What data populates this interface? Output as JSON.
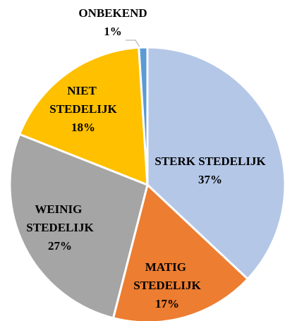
{
  "chart_data": {
    "type": "pie",
    "categories": [
      "STERK STEDELIJK",
      "MATIG STEDELIJK",
      "WEINIG STEDELIJK",
      "NIET STEDELIJK",
      "ONBEKEND"
    ],
    "values": [
      37,
      17,
      27,
      18,
      1
    ],
    "value_labels": [
      "37%",
      "17%",
      "27%",
      "18%",
      "1%"
    ],
    "colors": [
      "#b4c7e7",
      "#ed7d31",
      "#a5a5a5",
      "#ffc000",
      "#5b9bd5"
    ]
  }
}
